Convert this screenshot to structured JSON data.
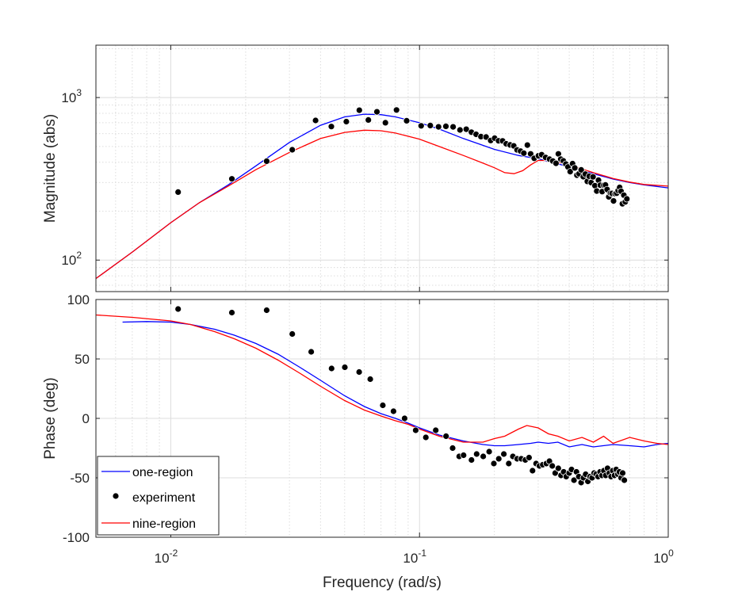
{
  "colors": {
    "one_region": "#0000ff",
    "experiment": "#000000",
    "nine_region": "#ff0000",
    "grid": "#dcdcdc",
    "axes": "#262626"
  },
  "chart_data": [
    {
      "type": "line",
      "panel": "magnitude",
      "title": "",
      "xlabel": "",
      "ylabel": "Magnitude (abs)",
      "xscale": "log",
      "yscale": "log",
      "xlim": [
        0.005,
        1
      ],
      "ylim": [
        64,
        2100
      ],
      "grid": true,
      "yticks": [
        {
          "value": 100,
          "label": "10",
          "exp": "2"
        },
        {
          "value": 1000,
          "label": "10",
          "exp": "3"
        }
      ],
      "series": [
        {
          "name": "one-region",
          "style": "line",
          "x": [
            0.005,
            0.007,
            0.01,
            0.013,
            0.017,
            0.022,
            0.03,
            0.04,
            0.05,
            0.06,
            0.07,
            0.08,
            0.1,
            0.12,
            0.15,
            0.2,
            0.25,
            0.3,
            0.35,
            0.4,
            0.5,
            0.6,
            0.7,
            0.8,
            1.0
          ],
          "y": [
            77,
            112,
            170,
            225,
            290,
            380,
            530,
            675,
            760,
            790,
            785,
            760,
            700,
            640,
            560,
            480,
            440,
            420,
            395,
            375,
            340,
            315,
            300,
            290,
            278
          ]
        },
        {
          "name": "nine-region",
          "style": "line",
          "x": [
            0.005,
            0.007,
            0.01,
            0.013,
            0.017,
            0.022,
            0.03,
            0.04,
            0.05,
            0.06,
            0.07,
            0.08,
            0.1,
            0.12,
            0.15,
            0.18,
            0.2,
            0.22,
            0.24,
            0.26,
            0.28,
            0.3,
            0.33,
            0.36,
            0.4,
            0.5,
            0.6,
            0.7,
            0.8,
            1.0
          ],
          "y": [
            77,
            112,
            170,
            225,
            285,
            360,
            460,
            560,
            610,
            630,
            625,
            605,
            555,
            500,
            440,
            395,
            370,
            345,
            340,
            355,
            385,
            410,
            410,
            400,
            385,
            345,
            318,
            302,
            292,
            285
          ]
        },
        {
          "name": "experiment",
          "style": "markers",
          "x": [
            0.0107,
            0.0176,
            0.0243,
            0.0308,
            0.0382,
            0.0442,
            0.0508,
            0.0573,
            0.0623,
            0.0674,
            0.0729,
            0.0808,
            0.0888,
            0.1015,
            0.1105,
            0.1192,
            0.1277,
            0.1365,
            0.1455,
            0.1542,
            0.1617,
            0.1688,
            0.1766,
            0.1852,
            0.1933,
            0.2005,
            0.2078,
            0.2157,
            0.2231,
            0.2315,
            0.2392,
            0.2468,
            0.2549,
            0.2626,
            0.2714,
            0.2798,
            0.2891,
            0.3005,
            0.3097,
            0.3214,
            0.333,
            0.3432,
            0.3538,
            0.3617,
            0.3697,
            0.3788,
            0.3875,
            0.3952,
            0.4035,
            0.4123,
            0.4209,
            0.4294,
            0.4381,
            0.4467,
            0.4555,
            0.464,
            0.4728,
            0.481,
            0.49,
            0.4983,
            0.5072,
            0.5158,
            0.5242,
            0.5332,
            0.5421,
            0.5507,
            0.5594,
            0.5681,
            0.5766,
            0.5856,
            0.5942,
            0.6027,
            0.6115,
            0.6203,
            0.6288,
            0.6377,
            0.6462,
            0.6545,
            0.663,
            0.6717,
            0.6818
          ],
          "y": [
            262,
            316,
            406,
            477,
            723,
            663,
            711,
            836,
            728,
            817,
            700,
            838,
            720,
            670,
            673,
            660,
            665,
            660,
            632,
            638,
            612,
            594,
            575,
            572,
            544,
            562,
            542,
            541,
            519,
            511,
            504,
            476,
            468,
            455,
            510,
            450,
            423,
            438,
            445,
            428,
            418,
            407,
            394,
            450,
            418,
            408,
            390,
            374,
            350,
            392,
            369,
            333,
            340,
            359,
            326,
            338,
            305,
            328,
            300,
            325,
            287,
            266,
            310,
            289,
            264,
            289,
            290,
            272,
            245,
            258,
            257,
            231,
            256,
            258,
            268,
            280,
            265,
            222,
            251,
            228,
            238
          ]
        }
      ]
    },
    {
      "type": "line",
      "panel": "phase",
      "title": "",
      "xlabel": "Frequency (rad/s)",
      "ylabel": "Phase (deg)",
      "xscale": "log",
      "yscale": "linear",
      "xlim": [
        0.005,
        1
      ],
      "ylim": [
        -100,
        100
      ],
      "grid": true,
      "yticks": [
        {
          "value": -100,
          "label": "-100"
        },
        {
          "value": -50,
          "label": "-50"
        },
        {
          "value": 0,
          "label": "0"
        },
        {
          "value": 50,
          "label": "50"
        },
        {
          "value": 100,
          "label": "100"
        }
      ],
      "xticks": [
        {
          "value": 0.01,
          "label": "10",
          "exp": "-2"
        },
        {
          "value": 0.1,
          "label": "10",
          "exp": "-1"
        },
        {
          "value": 1,
          "label": "10",
          "exp": "0"
        }
      ],
      "legend": {
        "position": "bottom-left",
        "entries": [
          "one-region",
          "experiment",
          "nine-region"
        ]
      },
      "series": [
        {
          "name": "one-region",
          "style": "line",
          "x": [
            0.0064,
            0.008,
            0.01,
            0.012,
            0.015,
            0.018,
            0.022,
            0.027,
            0.033,
            0.04,
            0.05,
            0.06,
            0.07,
            0.08,
            0.09,
            0.1,
            0.12,
            0.15,
            0.18,
            0.2,
            0.22,
            0.25,
            0.28,
            0.3,
            0.33,
            0.36,
            0.4,
            0.45,
            0.5,
            0.6,
            0.7,
            0.8,
            0.9,
            1.0
          ],
          "y": [
            81,
            81.5,
            81,
            79,
            75,
            70,
            63,
            54,
            43,
            32,
            19,
            10,
            4,
            0,
            -4,
            -8,
            -14,
            -19,
            -22,
            -23,
            -23,
            -22,
            -21,
            -20,
            -21,
            -20,
            -24,
            -22,
            -24,
            -22,
            -23,
            -24,
            -22,
            -21
          ]
        },
        {
          "name": "nine-region",
          "style": "line",
          "x": [
            0.005,
            0.007,
            0.01,
            0.012,
            0.015,
            0.018,
            0.022,
            0.027,
            0.033,
            0.04,
            0.05,
            0.06,
            0.07,
            0.08,
            0.09,
            0.1,
            0.12,
            0.15,
            0.18,
            0.2,
            0.22,
            0.25,
            0.27,
            0.3,
            0.33,
            0.36,
            0.4,
            0.45,
            0.5,
            0.55,
            0.6,
            0.7,
            0.8,
            0.9,
            1.0
          ],
          "y": [
            87,
            85,
            82,
            79,
            73,
            67,
            59,
            49,
            38,
            27,
            15,
            7,
            2,
            -2,
            -5,
            -9,
            -15,
            -20,
            -20,
            -17,
            -15,
            -9,
            -6,
            -8,
            -13,
            -15,
            -19,
            -16,
            -20,
            -15,
            -21,
            -16,
            -19,
            -21,
            -22
          ]
        },
        {
          "name": "experiment",
          "style": "markers",
          "x": [
            0.0107,
            0.0176,
            0.0243,
            0.0308,
            0.0367,
            0.0443,
            0.0501,
            0.0572,
            0.0634,
            0.0712,
            0.0786,
            0.0871,
            0.0965,
            0.106,
            0.1162,
            0.1278,
            0.1359,
            0.1444,
            0.1503,
            0.1618,
            0.1697,
            0.1803,
            0.1906,
            0.199,
            0.2082,
            0.2183,
            0.2284,
            0.2374,
            0.2469,
            0.2565,
            0.2664,
            0.2756,
            0.2847,
            0.2942,
            0.3034,
            0.3129,
            0.3234,
            0.3329,
            0.3418,
            0.3513,
            0.3614,
            0.3704,
            0.38,
            0.389,
            0.3995,
            0.4084,
            0.4178,
            0.4275,
            0.4369,
            0.4465,
            0.456,
            0.4655,
            0.475,
            0.4845,
            0.494,
            0.5035,
            0.513,
            0.5225,
            0.532,
            0.5415,
            0.551,
            0.5605,
            0.57,
            0.5795,
            0.589,
            0.5985,
            0.608,
            0.6175,
            0.627,
            0.6365,
            0.646,
            0.656,
            0.666
          ],
          "y": [
            92,
            89,
            91,
            71,
            56,
            42,
            43,
            39,
            33,
            11,
            6,
            0,
            -10,
            -16,
            -10,
            -15,
            -25,
            -32,
            -31,
            -35,
            -30,
            -32,
            -28,
            -38,
            -34,
            -30,
            -38,
            -32,
            -34,
            -34,
            -35,
            -33,
            -44,
            -38,
            -40,
            -39,
            -38,
            -36,
            -40,
            -46,
            -42,
            -48,
            -45,
            -49,
            -46,
            -43,
            -52,
            -45,
            -49,
            -54,
            -50,
            -47,
            -53,
            -49,
            -50,
            -46,
            -47,
            -49,
            -45,
            -48,
            -44,
            -48,
            -42,
            -46,
            -49,
            -44,
            -48,
            -43,
            -47,
            -45,
            -50,
            -46,
            -52
          ]
        }
      ]
    }
  ]
}
